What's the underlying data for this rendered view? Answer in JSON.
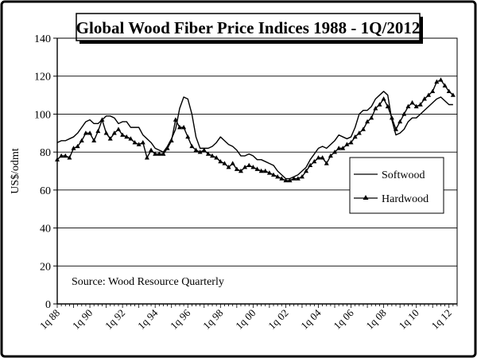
{
  "chart_data": {
    "type": "line",
    "title": "Global Wood Fiber Price Indices 1988 - 1Q/2012",
    "ylabel": "US$/odmt",
    "xlabel": "",
    "ylim": [
      0,
      140
    ],
    "y_ticks": [
      0,
      20,
      40,
      60,
      80,
      100,
      120,
      140
    ],
    "x_tick_labels": [
      "1q 88",
      "1q 90",
      "1q 92",
      "1q 94",
      "1q 96",
      "1q 98",
      "1q 00",
      "1q 02",
      "1q 04",
      "1q 06",
      "1q 08",
      "1q 10",
      "1q 12"
    ],
    "x_tick_years": [
      1988,
      1990,
      1992,
      1994,
      1996,
      1998,
      2000,
      2002,
      2004,
      2006,
      2008,
      2010,
      2012
    ],
    "xlim": [
      1988,
      2012.5
    ],
    "grid": true,
    "legend_position": "right",
    "annotation": "Source: Wood Resource Quarterly",
    "series": [
      {
        "name": "Softwood",
        "marker": "none",
        "points": [
          [
            1988.0,
            85
          ],
          [
            1988.25,
            86
          ],
          [
            1988.5,
            86
          ],
          [
            1988.75,
            87
          ],
          [
            1989.0,
            88
          ],
          [
            1989.25,
            90
          ],
          [
            1989.5,
            93
          ],
          [
            1989.75,
            96
          ],
          [
            1990.0,
            97
          ],
          [
            1990.25,
            95
          ],
          [
            1990.5,
            95
          ],
          [
            1990.75,
            97
          ],
          [
            1991.0,
            99
          ],
          [
            1991.25,
            99
          ],
          [
            1991.5,
            98
          ],
          [
            1991.75,
            95
          ],
          [
            1992.0,
            96
          ],
          [
            1992.25,
            96
          ],
          [
            1992.5,
            93
          ],
          [
            1992.75,
            93
          ],
          [
            1993.0,
            93
          ],
          [
            1993.25,
            89
          ],
          [
            1993.5,
            87
          ],
          [
            1993.75,
            85
          ],
          [
            1994.0,
            82
          ],
          [
            1994.25,
            81
          ],
          [
            1994.5,
            80
          ],
          [
            1994.75,
            83
          ],
          [
            1995.0,
            87
          ],
          [
            1995.25,
            92
          ],
          [
            1995.5,
            103
          ],
          [
            1995.75,
            109
          ],
          [
            1996.0,
            108
          ],
          [
            1996.25,
            100
          ],
          [
            1996.5,
            88
          ],
          [
            1996.75,
            82
          ],
          [
            1997.0,
            82
          ],
          [
            1997.25,
            82
          ],
          [
            1997.5,
            83
          ],
          [
            1997.75,
            85
          ],
          [
            1998.0,
            88
          ],
          [
            1998.25,
            86
          ],
          [
            1998.5,
            84
          ],
          [
            1998.75,
            83
          ],
          [
            1999.0,
            81
          ],
          [
            1999.25,
            78
          ],
          [
            1999.5,
            78
          ],
          [
            1999.75,
            79
          ],
          [
            2000.0,
            78
          ],
          [
            2000.25,
            76
          ],
          [
            2000.5,
            76
          ],
          [
            2000.75,
            75
          ],
          [
            2001.0,
            74
          ],
          [
            2001.25,
            73
          ],
          [
            2001.5,
            70
          ],
          [
            2001.75,
            68
          ],
          [
            2002.0,
            66
          ],
          [
            2002.25,
            66
          ],
          [
            2002.5,
            67
          ],
          [
            2002.75,
            68
          ],
          [
            2003.0,
            70
          ],
          [
            2003.25,
            72
          ],
          [
            2003.5,
            76
          ],
          [
            2003.75,
            79
          ],
          [
            2004.0,
            82
          ],
          [
            2004.25,
            83
          ],
          [
            2004.5,
            82
          ],
          [
            2004.75,
            84
          ],
          [
            2005.0,
            86
          ],
          [
            2005.25,
            89
          ],
          [
            2005.5,
            88
          ],
          [
            2005.75,
            87
          ],
          [
            2006.0,
            88
          ],
          [
            2006.25,
            93
          ],
          [
            2006.5,
            100
          ],
          [
            2006.75,
            102
          ],
          [
            2007.0,
            102
          ],
          [
            2007.25,
            104
          ],
          [
            2007.5,
            108
          ],
          [
            2007.75,
            110
          ],
          [
            2008.0,
            112
          ],
          [
            2008.25,
            110
          ],
          [
            2008.5,
            97
          ],
          [
            2008.75,
            89
          ],
          [
            2009.0,
            90
          ],
          [
            2009.25,
            92
          ],
          [
            2009.5,
            96
          ],
          [
            2009.75,
            98
          ],
          [
            2010.0,
            98
          ],
          [
            2010.25,
            100
          ],
          [
            2010.5,
            102
          ],
          [
            2010.75,
            104
          ],
          [
            2011.0,
            106
          ],
          [
            2011.25,
            108
          ],
          [
            2011.5,
            109
          ],
          [
            2011.75,
            107
          ],
          [
            2012.0,
            105
          ],
          [
            2012.25,
            105
          ]
        ]
      },
      {
        "name": "Hardwood",
        "marker": "triangle",
        "points": [
          [
            1988.0,
            76
          ],
          [
            1988.25,
            78
          ],
          [
            1988.5,
            78
          ],
          [
            1988.75,
            77
          ],
          [
            1989.0,
            82
          ],
          [
            1989.25,
            83
          ],
          [
            1989.5,
            86
          ],
          [
            1989.75,
            90
          ],
          [
            1990.0,
            90
          ],
          [
            1990.25,
            86
          ],
          [
            1990.5,
            91
          ],
          [
            1990.75,
            97
          ],
          [
            1991.0,
            90
          ],
          [
            1991.25,
            87
          ],
          [
            1991.5,
            90
          ],
          [
            1991.75,
            92
          ],
          [
            1992.0,
            89
          ],
          [
            1992.25,
            88
          ],
          [
            1992.5,
            87
          ],
          [
            1992.75,
            85
          ],
          [
            1993.0,
            84
          ],
          [
            1993.25,
            85
          ],
          [
            1993.5,
            77
          ],
          [
            1993.75,
            81
          ],
          [
            1994.0,
            79
          ],
          [
            1994.25,
            79
          ],
          [
            1994.5,
            79
          ],
          [
            1994.75,
            82
          ],
          [
            1995.0,
            86
          ],
          [
            1995.25,
            97
          ],
          [
            1995.5,
            93
          ],
          [
            1995.75,
            93
          ],
          [
            1996.0,
            88
          ],
          [
            1996.25,
            83
          ],
          [
            1996.5,
            81
          ],
          [
            1996.75,
            80
          ],
          [
            1997.0,
            81
          ],
          [
            1997.25,
            79
          ],
          [
            1997.5,
            78
          ],
          [
            1997.75,
            77
          ],
          [
            1998.0,
            75
          ],
          [
            1998.25,
            74
          ],
          [
            1998.5,
            72
          ],
          [
            1998.75,
            74
          ],
          [
            1999.0,
            71
          ],
          [
            1999.25,
            70
          ],
          [
            1999.5,
            72
          ],
          [
            1999.75,
            73
          ],
          [
            2000.0,
            72
          ],
          [
            2000.25,
            71
          ],
          [
            2000.5,
            70
          ],
          [
            2000.75,
            70
          ],
          [
            2001.0,
            69
          ],
          [
            2001.25,
            68
          ],
          [
            2001.5,
            67
          ],
          [
            2001.75,
            66
          ],
          [
            2002.0,
            65
          ],
          [
            2002.25,
            65
          ],
          [
            2002.5,
            66
          ],
          [
            2002.75,
            66
          ],
          [
            2003.0,
            67
          ],
          [
            2003.25,
            70
          ],
          [
            2003.5,
            73
          ],
          [
            2003.75,
            75
          ],
          [
            2004.0,
            77
          ],
          [
            2004.25,
            77
          ],
          [
            2004.5,
            74
          ],
          [
            2004.75,
            78
          ],
          [
            2005.0,
            80
          ],
          [
            2005.25,
            82
          ],
          [
            2005.5,
            82
          ],
          [
            2005.75,
            84
          ],
          [
            2006.0,
            85
          ],
          [
            2006.25,
            88
          ],
          [
            2006.5,
            90
          ],
          [
            2006.75,
            92
          ],
          [
            2007.0,
            96
          ],
          [
            2007.25,
            98
          ],
          [
            2007.5,
            103
          ],
          [
            2007.75,
            105
          ],
          [
            2008.0,
            108
          ],
          [
            2008.25,
            104
          ],
          [
            2008.5,
            98
          ],
          [
            2008.75,
            92
          ],
          [
            2009.0,
            96
          ],
          [
            2009.25,
            100
          ],
          [
            2009.5,
            104
          ],
          [
            2009.75,
            106
          ],
          [
            2010.0,
            104
          ],
          [
            2010.25,
            105
          ],
          [
            2010.5,
            108
          ],
          [
            2010.75,
            110
          ],
          [
            2011.0,
            112
          ],
          [
            2011.25,
            117
          ],
          [
            2011.5,
            118
          ],
          [
            2011.75,
            115
          ],
          [
            2012.0,
            112
          ],
          [
            2012.25,
            110
          ]
        ]
      }
    ]
  }
}
